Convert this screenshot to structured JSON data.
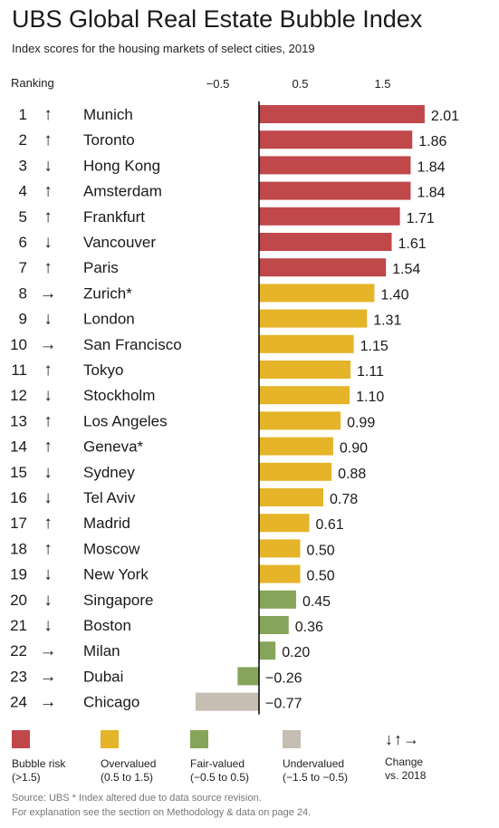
{
  "title": "UBS Global Real Estate Bubble Index",
  "subtitle": "Index scores for the housing markets of select cities, 2019",
  "ranking_label": "Ranking",
  "colors": {
    "bubble_risk": "#c0474a",
    "overvalued": "#e5b428",
    "fair_valued": "#86a55a",
    "undervalued": "#c6bdb3"
  },
  "chart_data": {
    "type": "bar",
    "orientation": "horizontal",
    "title": "UBS Global Real Estate Bubble Index",
    "subtitle": "Index scores for the housing markets of select cities, 2019",
    "x_ticks": [
      -0.5,
      0.5,
      1.5
    ],
    "x_tick_labels": [
      "−0.5",
      "0.5",
      "1.5"
    ],
    "xlim": [
      -0.77,
      2.01
    ],
    "grid": false,
    "rows": [
      {
        "rank": 1,
        "change": "up",
        "city": "Munich",
        "value": 2.01,
        "label": "2.01",
        "category": "bubble_risk"
      },
      {
        "rank": 2,
        "change": "up",
        "city": "Toronto",
        "value": 1.86,
        "label": "1.86",
        "category": "bubble_risk"
      },
      {
        "rank": 3,
        "change": "down",
        "city": "Hong Kong",
        "value": 1.84,
        "label": "1.84",
        "category": "bubble_risk"
      },
      {
        "rank": 4,
        "change": "up",
        "city": "Amsterdam",
        "value": 1.84,
        "label": "1.84",
        "category": "bubble_risk"
      },
      {
        "rank": 5,
        "change": "up",
        "city": "Frankfurt",
        "value": 1.71,
        "label": "1.71",
        "category": "bubble_risk"
      },
      {
        "rank": 6,
        "change": "down",
        "city": "Vancouver",
        "value": 1.61,
        "label": "1.61",
        "category": "bubble_risk"
      },
      {
        "rank": 7,
        "change": "up",
        "city": "Paris",
        "value": 1.54,
        "label": "1.54",
        "category": "bubble_risk"
      },
      {
        "rank": 8,
        "change": "same",
        "city": "Zurich*",
        "value": 1.4,
        "label": "1.40",
        "category": "overvalued"
      },
      {
        "rank": 9,
        "change": "down",
        "city": "London",
        "value": 1.31,
        "label": "1.31",
        "category": "overvalued"
      },
      {
        "rank": 10,
        "change": "same",
        "city": "San Francisco",
        "value": 1.15,
        "label": "1.15",
        "category": "overvalued"
      },
      {
        "rank": 11,
        "change": "up",
        "city": "Tokyo",
        "value": 1.11,
        "label": "1.11",
        "category": "overvalued"
      },
      {
        "rank": 12,
        "change": "down",
        "city": "Stockholm",
        "value": 1.1,
        "label": "1.10",
        "category": "overvalued"
      },
      {
        "rank": 13,
        "change": "up",
        "city": "Los Angeles",
        "value": 0.99,
        "label": "0.99",
        "category": "overvalued"
      },
      {
        "rank": 14,
        "change": "up",
        "city": "Geneva*",
        "value": 0.9,
        "label": "0.90",
        "category": "overvalued"
      },
      {
        "rank": 15,
        "change": "down",
        "city": "Sydney",
        "value": 0.88,
        "label": "0.88",
        "category": "overvalued"
      },
      {
        "rank": 16,
        "change": "down",
        "city": "Tel Aviv",
        "value": 0.78,
        "label": "0.78",
        "category": "overvalued"
      },
      {
        "rank": 17,
        "change": "up",
        "city": "Madrid",
        "value": 0.61,
        "label": "0.61",
        "category": "overvalued"
      },
      {
        "rank": 18,
        "change": "up",
        "city": "Moscow",
        "value": 0.5,
        "label": "0.50",
        "category": "overvalued"
      },
      {
        "rank": 19,
        "change": "down",
        "city": "New York",
        "value": 0.5,
        "label": "0.50",
        "category": "overvalued"
      },
      {
        "rank": 20,
        "change": "down",
        "city": "Singapore",
        "value": 0.45,
        "label": "0.45",
        "category": "fair_valued"
      },
      {
        "rank": 21,
        "change": "down",
        "city": "Boston",
        "value": 0.36,
        "label": "0.36",
        "category": "fair_valued"
      },
      {
        "rank": 22,
        "change": "same",
        "city": "Milan",
        "value": 0.2,
        "label": "0.20",
        "category": "fair_valued"
      },
      {
        "rank": 23,
        "change": "same",
        "city": "Dubai",
        "value": -0.26,
        "label": "−0.26",
        "category": "fair_valued"
      },
      {
        "rank": 24,
        "change": "same",
        "city": "Chicago",
        "value": -0.77,
        "label": "−0.77",
        "category": "undervalued"
      }
    ]
  },
  "legend": {
    "bubble_risk": {
      "line1": "Bubble risk",
      "line2": "(>1.5)"
    },
    "overvalued": {
      "line1": "Overvalued",
      "line2": "(0.5 to 1.5)"
    },
    "fair_valued": {
      "line1": "Fair-valued",
      "line2": "(−0.5 to 0.5)"
    },
    "undervalued": {
      "line1": "Undervalued",
      "line2": "(−1.5 to −0.5)"
    },
    "change": {
      "arrows": "↓↑→",
      "line1": "Change",
      "line2": "vs. 2018"
    }
  },
  "footer": {
    "source": "Source: UBS  * Index altered due to data source revision.",
    "note": "For explanation see the section on Methodology & data on page 24."
  }
}
